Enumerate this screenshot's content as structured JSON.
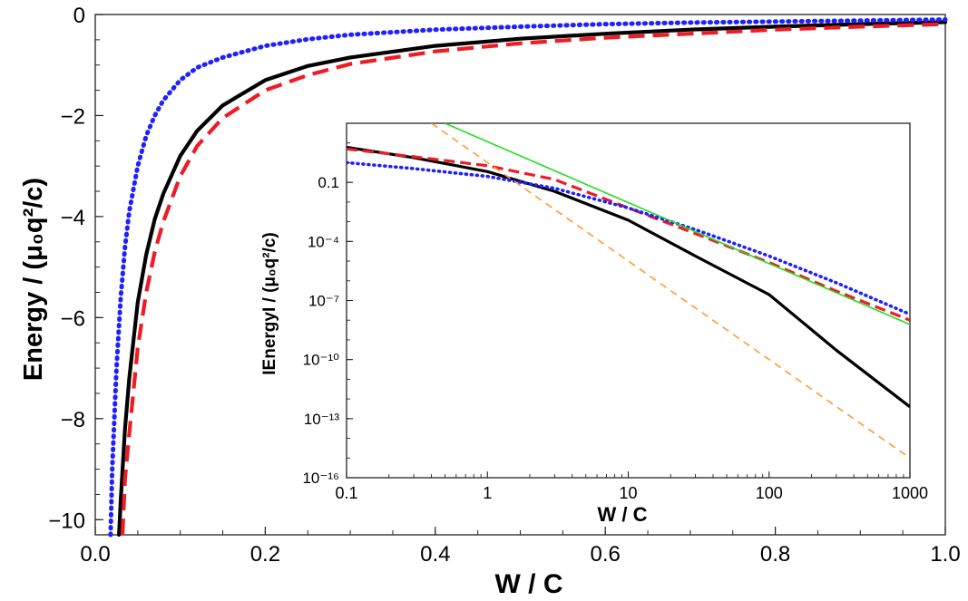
{
  "chart_data": [
    {
      "type": "line",
      "xlabel": "W / C",
      "ylabel": "Energy / (μ₀q²/c)",
      "xlim": [
        0.0,
        1.0
      ],
      "ylim": [
        -10.3,
        0.0
      ],
      "x_ticks": [
        "0.0",
        "0.2",
        "0.4",
        "0.6",
        "0.8",
        "1.0"
      ],
      "y_ticks": [
        "0",
        "−2",
        "−4",
        "−6",
        "−8",
        "−10"
      ],
      "grid": false,
      "series": [
        {
          "color": "#000000",
          "style": "solid",
          "x": [
            0.028,
            0.03,
            0.035,
            0.04,
            0.05,
            0.06,
            0.07,
            0.08,
            0.1,
            0.12,
            0.15,
            0.2,
            0.25,
            0.3,
            0.4,
            0.5,
            0.6,
            0.7,
            0.8,
            0.9,
            1.0
          ],
          "y": [
            -10.3,
            -9.6,
            -8.2,
            -7.2,
            -5.7,
            -4.75,
            -4.05,
            -3.55,
            -2.8,
            -2.3,
            -1.8,
            -1.3,
            -1.02,
            -0.85,
            -0.62,
            -0.48,
            -0.38,
            -0.3,
            -0.24,
            -0.19,
            -0.15
          ]
        },
        {
          "color": "#ee1c25",
          "style": "dashed",
          "x": [
            0.032,
            0.035,
            0.04,
            0.05,
            0.06,
            0.07,
            0.08,
            0.1,
            0.12,
            0.15,
            0.2,
            0.25,
            0.3,
            0.4,
            0.5,
            0.6,
            0.7,
            0.8,
            0.9,
            1.0
          ],
          "y": [
            -10.3,
            -9.2,
            -8.3,
            -6.6,
            -5.5,
            -4.7,
            -4.1,
            -3.2,
            -2.6,
            -2.05,
            -1.5,
            -1.2,
            -0.98,
            -0.73,
            -0.57,
            -0.46,
            -0.38,
            -0.3,
            -0.24,
            -0.19
          ]
        },
        {
          "color": "#1f1fff",
          "style": "dotted",
          "x": [
            0.018,
            0.02,
            0.025,
            0.03,
            0.035,
            0.04,
            0.05,
            0.06,
            0.07,
            0.08,
            0.1,
            0.12,
            0.15,
            0.2,
            0.25,
            0.3,
            0.4,
            0.5,
            0.6,
            0.7,
            0.8,
            0.9,
            1.0
          ],
          "y": [
            -10.3,
            -9.0,
            -7.0,
            -5.6,
            -4.6,
            -3.9,
            -3.0,
            -2.4,
            -2.0,
            -1.7,
            -1.3,
            -1.05,
            -0.85,
            -0.62,
            -0.49,
            -0.4,
            -0.3,
            -0.24,
            -0.19,
            -0.16,
            -0.14,
            -0.12,
            -0.1
          ]
        }
      ]
    },
    {
      "type": "line",
      "xlabel": "W / C",
      "ylabel": "IEnergyI / (μ₀q²/c)",
      "xlim": [
        0.1,
        1000
      ],
      "ylim": [
        -16,
        2
      ],
      "x_scale": "log",
      "y_scale": "log",
      "x_ticks": [
        "0.1",
        "1",
        "10",
        "100",
        "1000"
      ],
      "y_ticks": [
        "0.1",
        "10⁻⁴",
        "10⁻⁷",
        "10⁻¹⁰",
        "10⁻¹³",
        "10⁻¹⁶"
      ],
      "grid": false,
      "series": [
        {
          "color": "#000000",
          "style": "solid",
          "x": [
            0.1,
            0.3,
            1,
            3,
            10,
            30,
            100,
            300,
            1000
          ],
          "y": [
            6.0,
            1.8,
            0.35,
            0.035,
            0.0012,
            1.8e-05,
            2e-07,
            3e-10,
            4e-13
          ]
        },
        {
          "color": "#ee1c25",
          "style": "dashed",
          "x": [
            0.1,
            0.3,
            1,
            3,
            10,
            30,
            100,
            300,
            1000
          ],
          "y": [
            5.0,
            2.0,
            0.7,
            0.14,
            0.005,
            0.00025,
            8.5e-06,
            3e-07,
            1e-08
          ]
        },
        {
          "color": "#1f1fff",
          "style": "dotted",
          "x": [
            0.1,
            0.3,
            1,
            3,
            10,
            30,
            100,
            300,
            1000
          ],
          "y": [
            1.0,
            0.5,
            0.2,
            0.05,
            0.005,
            0.0004,
            1.8e-05,
            8e-07,
            2e-08
          ]
        },
        {
          "color": "#22dd22",
          "style": "solid",
          "x": [
            0.5,
            1000
          ],
          "y": [
            100,
            6e-09
          ]
        },
        {
          "color": "#ff9a33",
          "style": "dashed",
          "x": [
            0.4,
            1000
          ],
          "y": [
            100,
            1e-15
          ]
        }
      ]
    }
  ]
}
